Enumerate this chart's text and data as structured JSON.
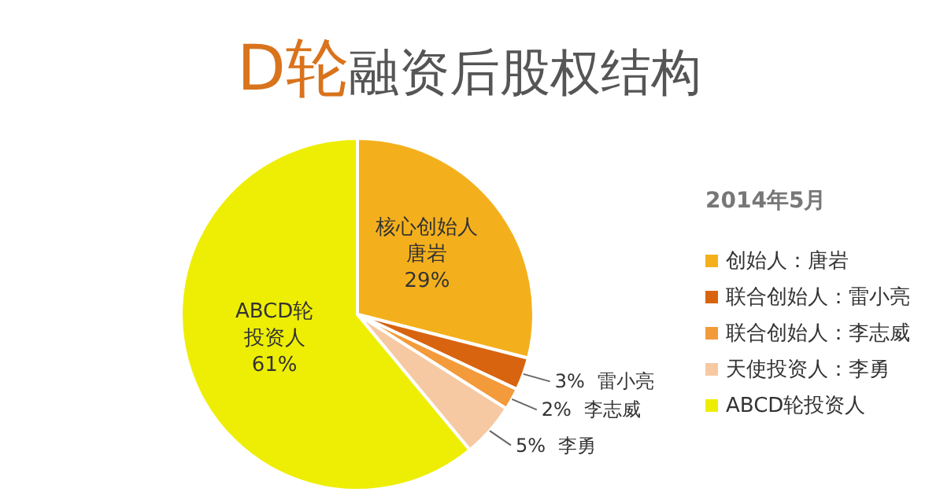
{
  "chart_data": {
    "type": "pie",
    "title": "D轮融资后股权结构",
    "legend_title": "2014年5月",
    "categories": [
      "创始人：唐岩",
      "联合创始人：雷小亮",
      "联合创始人：李志威",
      "天使投资人：李勇",
      "ABCD轮投资人"
    ],
    "values": [
      29,
      3,
      2,
      5,
      61
    ],
    "colors": [
      "#f4b01c",
      "#d8640f",
      "#f39a3a",
      "#f6c9a2",
      "#eeee05"
    ],
    "value_labels": [
      "29%",
      "3%",
      "2%",
      "5%",
      "61%"
    ],
    "annotations": [
      "核心创始人唐岩",
      "雷小亮",
      "李志威",
      "李勇",
      "ABCD轮投资人"
    ],
    "legend": "right"
  }
}
